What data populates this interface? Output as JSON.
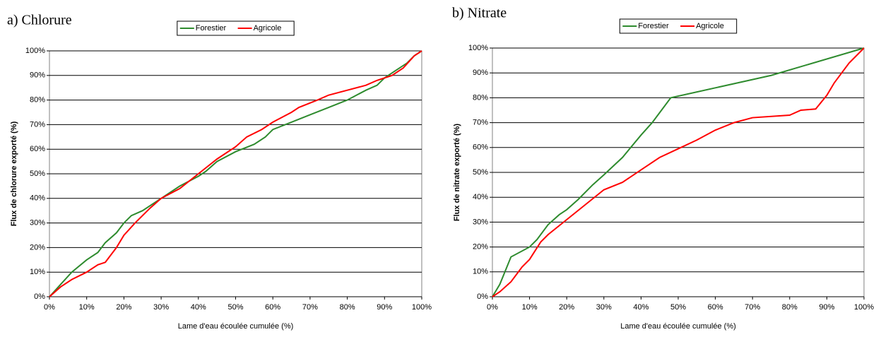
{
  "chart_data": [
    {
      "type": "line",
      "title": "a) Chlorure",
      "x_label": "Lame d'eau écoulée cumulée (%)",
      "y_label": "Flux de chlorure exporté (%)",
      "legend": "top",
      "grid": true,
      "xlim": [
        0,
        100
      ],
      "ylim": [
        0,
        100
      ],
      "xticks": [
        {
          "value": 0,
          "label": "0%"
        },
        {
          "value": 10,
          "label": "10%"
        },
        {
          "value": 20,
          "label": "20%"
        },
        {
          "value": 30,
          "label": "30%"
        },
        {
          "value": 40,
          "label": "40%"
        },
        {
          "value": 50,
          "label": "50%"
        },
        {
          "value": 60,
          "label": "60%"
        },
        {
          "value": 70,
          "label": "70%"
        },
        {
          "value": 80,
          "label": "80%"
        },
        {
          "value": 90,
          "label": "90%"
        },
        {
          "value": 100,
          "label": "100%"
        }
      ],
      "yticks": [
        {
          "value": 0,
          "label": "0%"
        },
        {
          "value": 10,
          "label": "10%"
        },
        {
          "value": 20,
          "label": "20%"
        },
        {
          "value": 30,
          "label": "30%"
        },
        {
          "value": 40,
          "label": "40%"
        },
        {
          "value": 50,
          "label": "50%"
        },
        {
          "value": 60,
          "label": "60%"
        },
        {
          "value": 70,
          "label": "70%"
        },
        {
          "value": 80,
          "label": "80%"
        },
        {
          "value": 90,
          "label": "90%"
        },
        {
          "value": 100,
          "label": "100%"
        }
      ],
      "series": [
        {
          "name": "Forestier",
          "color": "#2e8b2e",
          "x": [
            0,
            3,
            6,
            10,
            13,
            15,
            18,
            20,
            22,
            25,
            30,
            35,
            40,
            42,
            45,
            50,
            55,
            58,
            60,
            65,
            70,
            75,
            80,
            85,
            88,
            90,
            93,
            96,
            98,
            100
          ],
          "values": [
            0,
            5,
            10,
            15,
            18,
            22,
            26,
            30,
            33,
            35,
            40,
            45,
            49,
            51,
            55,
            59,
            62,
            65,
            68,
            71,
            74,
            77,
            80,
            84,
            86,
            89,
            92,
            95,
            98,
            100
          ]
        },
        {
          "name": "Agricole",
          "color": "#ff0000",
          "x": [
            0,
            3,
            6,
            10,
            13,
            15,
            18,
            20,
            23,
            27,
            30,
            35,
            40,
            45,
            50,
            53,
            57,
            60,
            65,
            67,
            72,
            75,
            80,
            85,
            88,
            92,
            95,
            98,
            100
          ],
          "values": [
            0,
            4,
            7,
            10,
            13,
            14,
            20,
            25,
            30,
            36,
            40,
            44,
            50,
            56,
            61,
            65,
            68,
            71,
            75,
            77,
            80,
            82,
            84,
            86,
            88,
            90,
            93,
            98,
            100
          ]
        }
      ]
    },
    {
      "type": "line",
      "title": "b) Nitrate",
      "x_label": "Lame d'eau écoulée cumulée (%)",
      "y_label": "Flux de nitrate exporté (%)",
      "legend": "top",
      "grid": true,
      "xlim": [
        0,
        100
      ],
      "ylim": [
        0,
        100
      ],
      "xticks": [
        {
          "value": 0,
          "label": "0%"
        },
        {
          "value": 10,
          "label": "10%"
        },
        {
          "value": 20,
          "label": "20%"
        },
        {
          "value": 30,
          "label": "30%"
        },
        {
          "value": 40,
          "label": "40%"
        },
        {
          "value": 50,
          "label": "50%"
        },
        {
          "value": 60,
          "label": "60%"
        },
        {
          "value": 70,
          "label": "70%"
        },
        {
          "value": 80,
          "label": "80%"
        },
        {
          "value": 90,
          "label": "90%"
        },
        {
          "value": 100,
          "label": "100%"
        }
      ],
      "yticks": [
        {
          "value": 0,
          "label": "0%"
        },
        {
          "value": 10,
          "label": "10%"
        },
        {
          "value": 20,
          "label": "20%"
        },
        {
          "value": 30,
          "label": "30%"
        },
        {
          "value": 40,
          "label": "40%"
        },
        {
          "value": 50,
          "label": "50%"
        },
        {
          "value": 60,
          "label": "60%"
        },
        {
          "value": 70,
          "label": "70%"
        },
        {
          "value": 80,
          "label": "80%"
        },
        {
          "value": 90,
          "label": "90%"
        },
        {
          "value": 100,
          "label": "100%"
        }
      ],
      "series": [
        {
          "name": "Forestier",
          "color": "#2e8b2e",
          "x": [
            0,
            2,
            5,
            10,
            12,
            15,
            18,
            20,
            23,
            27,
            30,
            35,
            40,
            43,
            46,
            48,
            60,
            75,
            100
          ],
          "values": [
            0,
            5,
            16,
            20,
            23,
            29,
            33,
            35,
            39,
            45,
            49,
            56,
            65,
            70,
            76,
            80,
            84,
            89,
            100
          ]
        },
        {
          "name": "Agricole",
          "color": "#ff0000",
          "x": [
            0,
            2,
            5,
            8,
            10,
            13,
            15,
            20,
            25,
            30,
            35,
            40,
            45,
            50,
            55,
            60,
            65,
            70,
            80,
            83,
            87,
            90,
            92,
            94,
            96,
            100
          ],
          "values": [
            0,
            2,
            6,
            12,
            15,
            22,
            25,
            31,
            37,
            43,
            46,
            51,
            56,
            59.5,
            63,
            67,
            70,
            72,
            73,
            75,
            75.5,
            81,
            86,
            90,
            94,
            100
          ]
        }
      ]
    }
  ]
}
